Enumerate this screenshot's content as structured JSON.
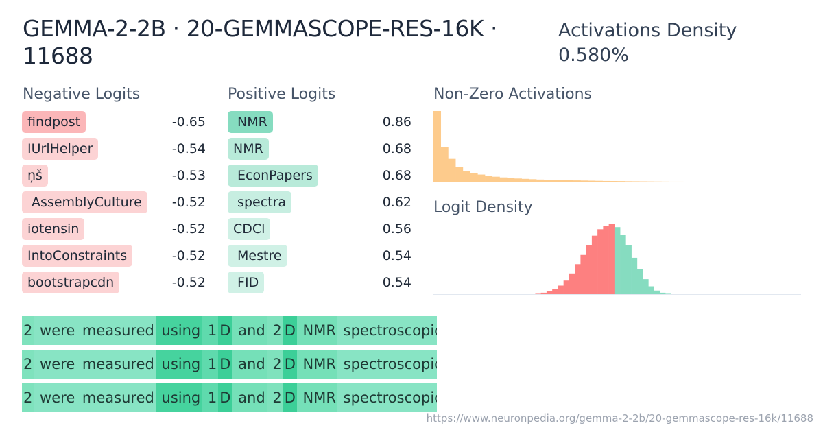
{
  "title": "GEMMA-2-2B · 20-GEMMASCOPE-RES-16K · 11688",
  "activations_density": {
    "label": "Activations Density",
    "value": "0.580%"
  },
  "negative_logits": {
    "heading": "Negative Logits",
    "items": [
      {
        "token": "findpost",
        "value": "-0.65",
        "color": "#fbb6b8"
      },
      {
        "token": "IUrlHelper",
        "value": "-0.54",
        "color": "#fcd3d4"
      },
      {
        "token": "ņš",
        "value": "-0.53",
        "color": "#fcd3d4"
      },
      {
        "token": " AssemblyCulture",
        "value": "-0.52",
        "color": "#fcd3d4"
      },
      {
        "token": "iotensin",
        "value": "-0.52",
        "color": "#fcd3d4"
      },
      {
        "token": "IntoConstraints",
        "value": "-0.52",
        "color": "#fcd3d4"
      },
      {
        "token": "bootstrapcdn",
        "value": "-0.52",
        "color": "#fcd3d4"
      }
    ]
  },
  "positive_logits": {
    "heading": "Positive Logits",
    "items": [
      {
        "token": " NMR",
        "value": "0.86",
        "color": "#86dcc0"
      },
      {
        "token": "NMR",
        "value": "0.68",
        "color": "#b8ead9"
      },
      {
        "token": " EconPapers",
        "value": "0.68",
        "color": "#b8ead9"
      },
      {
        "token": " spectra",
        "value": "0.62",
        "color": "#c7eee1"
      },
      {
        "token": "CDCl",
        "value": "0.56",
        "color": "#d0f1e6"
      },
      {
        "token": " Mestre",
        "value": "0.54",
        "color": "#d0f1e6"
      },
      {
        "token": " FID",
        "value": "0.54",
        "color": "#d0f1e6"
      }
    ]
  },
  "chart_data": [
    {
      "type": "bar",
      "title": "Non-Zero Activations",
      "color": "#fdcb8c",
      "values": [
        100,
        50,
        33,
        22,
        16,
        13,
        11,
        9,
        8,
        7,
        6,
        5.5,
        5,
        4.5,
        4,
        3.8,
        3.5,
        3.2,
        3,
        2.8,
        2.6,
        2.4,
        2.2,
        2,
        1.9,
        1.8,
        1.6,
        1.5,
        1.4,
        1.3,
        1.2,
        1.1,
        1,
        1,
        0.9,
        0.9,
        0.8,
        0.8,
        0.7,
        0.7,
        0.6,
        0.6,
        0.6,
        0.5,
        0.5,
        0.5,
        0.5,
        0.4,
        0.4,
        0.4
      ]
    },
    {
      "type": "bar",
      "title": "Logit Density",
      "negative_color": "#fd8080",
      "positive_color": "#86dcc0",
      "values": [
        0,
        0,
        0,
        0,
        0,
        0,
        0,
        0,
        0,
        0,
        0,
        0,
        0,
        0,
        0,
        0.3,
        0.5,
        0.8,
        1.5,
        3,
        5,
        8,
        13,
        20,
        30,
        43,
        56,
        70,
        83,
        92,
        97,
        100,
        95,
        84,
        70,
        52,
        36,
        22,
        12,
        6,
        3,
        1.5,
        0.7,
        0.3,
        0.1,
        0,
        0,
        0,
        0,
        0,
        0,
        0,
        0,
        0,
        0,
        0,
        0,
        0,
        0,
        0,
        0,
        0,
        0,
        0,
        0
      ],
      "negative_count": 32
    }
  ],
  "snippets": [
    [
      {
        "text": "2",
        "color": "#7fe2bd"
      },
      {
        "text": " were",
        "color": "#88e4c4"
      },
      {
        "text": " measured",
        "color": "#88e4c4"
      },
      {
        "text": " using",
        "color": "#46d39e"
      },
      {
        "text": " 1",
        "color": "#5fda ad"
      },
      {
        "text": "D",
        "color": "#3ccf98"
      },
      {
        "text": " and",
        "color": "#75e0b8"
      },
      {
        "text": " 2",
        "color": "#7fe2bd"
      },
      {
        "text": "D",
        "color": "#3ccf98"
      },
      {
        "text": " NMR",
        "color": "#75e0b8"
      },
      {
        "text": " spectroscopic",
        "color": "#88e4c4"
      }
    ],
    [
      {
        "text": "2",
        "color": "#7fe2bd"
      },
      {
        "text": " were",
        "color": "#88e4c4"
      },
      {
        "text": " measured",
        "color": "#88e4c4"
      },
      {
        "text": " using",
        "color": "#46d39e"
      },
      {
        "text": " 1",
        "color": "#5fdaad"
      },
      {
        "text": "D",
        "color": "#3ccf98"
      },
      {
        "text": " and",
        "color": "#75e0b8"
      },
      {
        "text": " 2",
        "color": "#7fe2bd"
      },
      {
        "text": "D",
        "color": "#3ccf98"
      },
      {
        "text": " NMR",
        "color": "#75e0b8"
      },
      {
        "text": " spectroscopic",
        "color": "#88e4c4"
      }
    ],
    [
      {
        "text": "2",
        "color": "#7fe2bd"
      },
      {
        "text": " were",
        "color": "#88e4c4"
      },
      {
        "text": " measured",
        "color": "#88e4c4"
      },
      {
        "text": " using",
        "color": "#46d39e"
      },
      {
        "text": " 1",
        "color": "#5fdaad"
      },
      {
        "text": "D",
        "color": "#3ccf98"
      },
      {
        "text": " and",
        "color": "#75e0b8"
      },
      {
        "text": " 2",
        "color": "#7fe2bd"
      },
      {
        "text": "D",
        "color": "#3ccf98"
      },
      {
        "text": " NMR",
        "color": "#75e0b8"
      },
      {
        "text": " spectroscopic",
        "color": "#88e4c4"
      }
    ]
  ],
  "url": "https://www.neuronpedia.org/gemma-2-2b/20-gemmascope-res-16k/11688"
}
